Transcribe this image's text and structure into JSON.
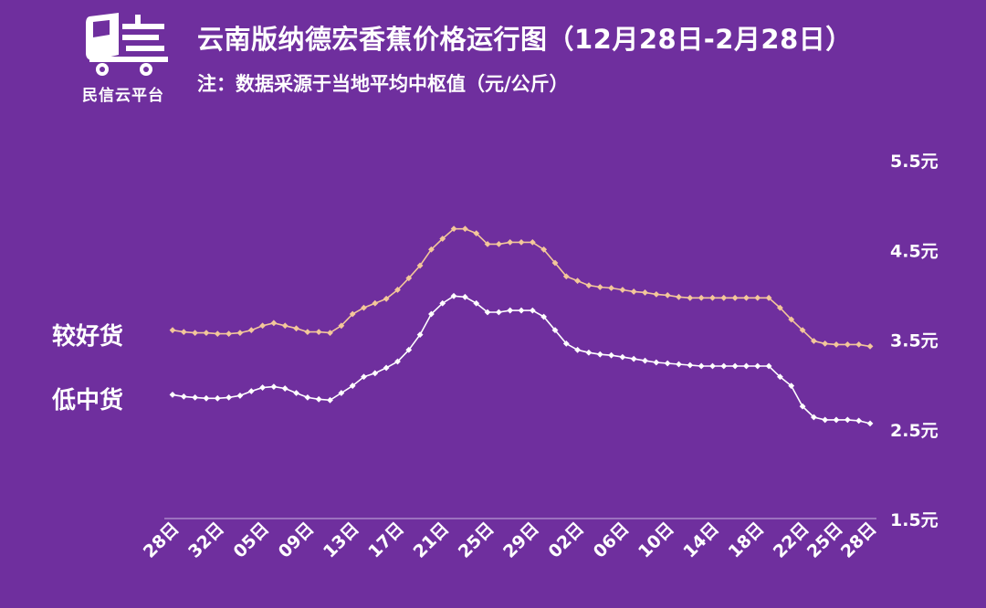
{
  "logo": {
    "text": "民信云平台",
    "icon": "delivery-truck-icon"
  },
  "header": {
    "title": "云南版纳德宏香蕉价格运行图（12月28日-2月28日）",
    "subtitle": "注：数据采源于当地平均中枢值（元/公斤）"
  },
  "colors": {
    "background": "#6f2f9e",
    "good": "#f3c79a",
    "low": "#ffffff",
    "axis": "#c9b3e0"
  },
  "chart_data": {
    "type": "line",
    "ylim": [
      1.5,
      5.5
    ],
    "yticks": [
      1.5,
      2.5,
      3.5,
      4.5,
      5.5
    ],
    "ytick_labels": [
      "1.5元",
      "2.5元",
      "3.5元",
      "4.5元",
      "5.5元"
    ],
    "xtick_labels": [
      "28日",
      "32日",
      "05日",
      "09日",
      "13日",
      "17日",
      "21日",
      "25日",
      "29日",
      "02日",
      "06日",
      "10日",
      "14日",
      "18日",
      "22日",
      "25日",
      "28日"
    ],
    "xtick_index": [
      0,
      4,
      8,
      12,
      16,
      20,
      24,
      28,
      32,
      36,
      40,
      44,
      48,
      52,
      56,
      59,
      62
    ],
    "grid": false,
    "series": [
      {
        "name": "较好货",
        "values": [
          3.6,
          3.58,
          3.57,
          3.57,
          3.56,
          3.56,
          3.57,
          3.6,
          3.65,
          3.68,
          3.65,
          3.62,
          3.58,
          3.58,
          3.57,
          3.65,
          3.78,
          3.85,
          3.9,
          3.95,
          4.05,
          4.18,
          4.32,
          4.5,
          4.62,
          4.73,
          4.73,
          4.68,
          4.56,
          4.56,
          4.58,
          4.58,
          4.58,
          4.5,
          4.35,
          4.2,
          4.15,
          4.1,
          4.08,
          4.07,
          4.05,
          4.03,
          4.02,
          4.0,
          3.99,
          3.97,
          3.96,
          3.96,
          3.96,
          3.96,
          3.96,
          3.96,
          3.96,
          3.96,
          3.85,
          3.72,
          3.6,
          3.48,
          3.45,
          3.44,
          3.44,
          3.44,
          3.42
        ]
      },
      {
        "name": "低中货",
        "values": [
          2.88,
          2.86,
          2.85,
          2.84,
          2.84,
          2.85,
          2.87,
          2.92,
          2.96,
          2.97,
          2.95,
          2.9,
          2.85,
          2.83,
          2.82,
          2.9,
          2.98,
          3.08,
          3.12,
          3.18,
          3.25,
          3.38,
          3.55,
          3.78,
          3.9,
          3.98,
          3.97,
          3.9,
          3.8,
          3.8,
          3.82,
          3.82,
          3.82,
          3.75,
          3.6,
          3.45,
          3.38,
          3.35,
          3.33,
          3.32,
          3.3,
          3.28,
          3.26,
          3.24,
          3.23,
          3.22,
          3.21,
          3.2,
          3.2,
          3.2,
          3.2,
          3.2,
          3.2,
          3.2,
          3.08,
          2.98,
          2.75,
          2.63,
          2.6,
          2.6,
          2.6,
          2.59,
          2.56
        ]
      }
    ]
  }
}
